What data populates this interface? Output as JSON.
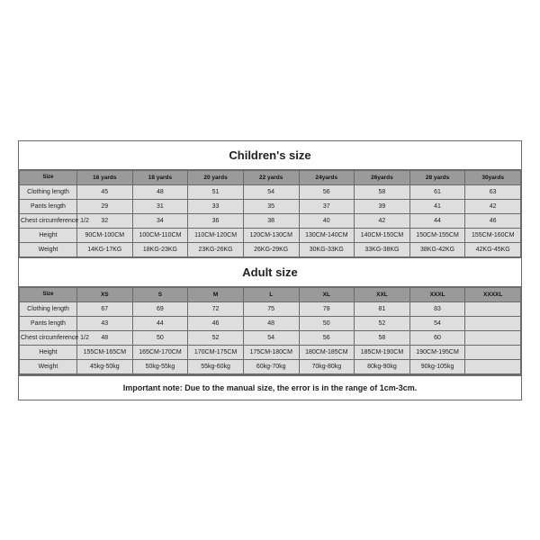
{
  "background_color": "#ffffff",
  "border_color": "#6b6b6b",
  "header_bg": "#9a9a9a",
  "cell_bg": "#dedede",
  "text_color": "#222222",
  "title_fontsize": 13,
  "cell_fontsize": 7,
  "note_fontsize": 9,
  "children": {
    "title": "Children's size",
    "size_label": "Size",
    "columns": [
      "16 yards",
      "18 yards",
      "20 yards",
      "22 yards",
      "24yards",
      "26yards",
      "28 yards",
      "30yards"
    ],
    "rows": [
      {
        "label": "Clothing length",
        "values": [
          "45",
          "48",
          "51",
          "54",
          "56",
          "58",
          "61",
          "63"
        ]
      },
      {
        "label": "Pants length",
        "values": [
          "29",
          "31",
          "33",
          "35",
          "37",
          "39",
          "41",
          "42"
        ]
      },
      {
        "label": "Chest circumference 1/2",
        "values": [
          "32",
          "34",
          "36",
          "38",
          "40",
          "42",
          "44",
          "46"
        ]
      },
      {
        "label": "Height",
        "values": [
          "90CM-100CM",
          "100CM-110CM",
          "110CM-120CM",
          "120CM-130CM",
          "130CM-140CM",
          "140CM-150CM",
          "150CM-155CM",
          "155CM-160CM"
        ]
      },
      {
        "label": "Weight",
        "values": [
          "14KG-17KG",
          "18KG-23KG",
          "23KG-26KG",
          "26KG-29KG",
          "30KG-33KG",
          "33KG-38KG",
          "38KG-42KG",
          "42KG-45KG"
        ]
      }
    ]
  },
  "adult": {
    "title": "Adult size",
    "size_label": "Size",
    "columns": [
      "XS",
      "S",
      "M",
      "L",
      "XL",
      "XXL",
      "XXXL",
      "XXXXL"
    ],
    "rows": [
      {
        "label": "Clothing length",
        "values": [
          "67",
          "69",
          "72",
          "75",
          "78",
          "81",
          "83",
          ""
        ]
      },
      {
        "label": "Pants length",
        "values": [
          "43",
          "44",
          "46",
          "48",
          "50",
          "52",
          "54",
          ""
        ]
      },
      {
        "label": "Chest circumference 1/2",
        "values": [
          "48",
          "50",
          "52",
          "54",
          "56",
          "58",
          "60",
          ""
        ]
      },
      {
        "label": "Height",
        "values": [
          "155CM-165CM",
          "165CM-170CM",
          "170CM-175CM",
          "175CM-180CM",
          "180CM-185CM",
          "185CM-190CM",
          "190CM-195CM",
          ""
        ]
      },
      {
        "label": "Weight",
        "values": [
          "45kg-50kg",
          "50kg-55kg",
          "55kg-60kg",
          "60kg-70kg",
          "70kg-80kg",
          "80kg-90kg",
          "90kg-105kg",
          ""
        ]
      }
    ]
  },
  "note": "Important note: Due to the manual size, the error is in the range of 1cm-3cm."
}
